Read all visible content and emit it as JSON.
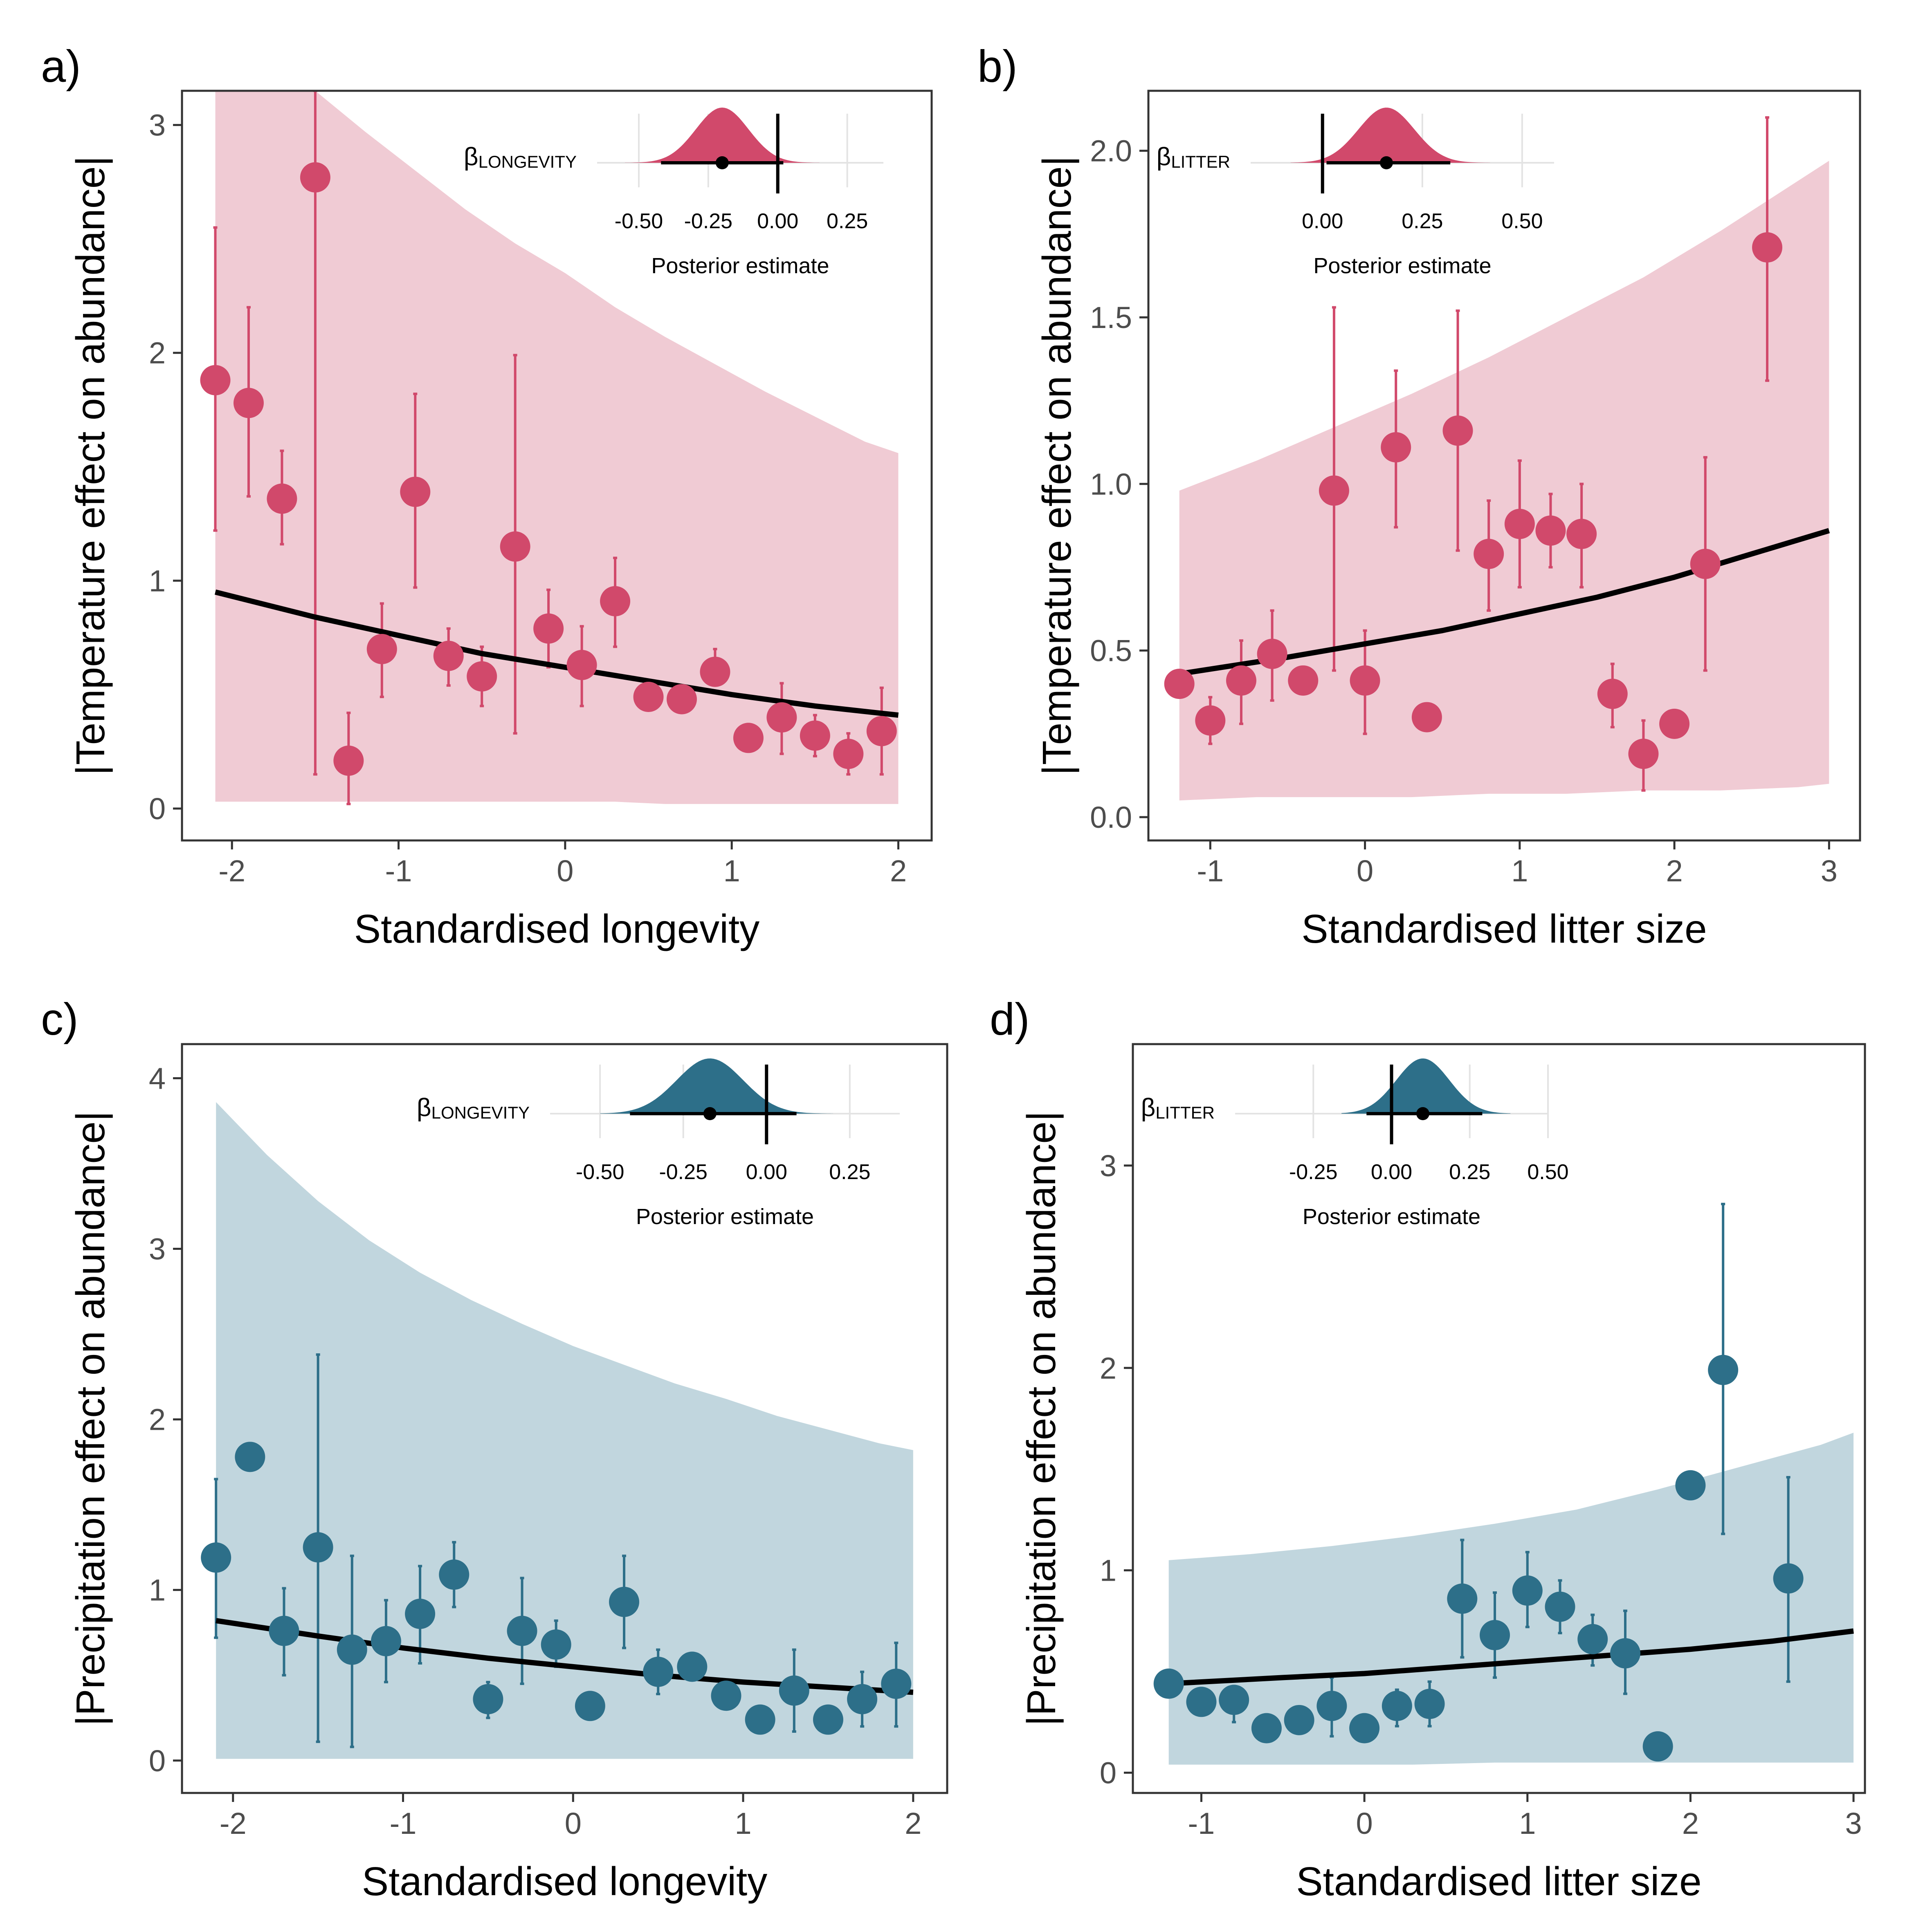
{
  "colors": {
    "temperature": "#d1496b",
    "temperature_band": "#f0cbd4",
    "precipitation": "#2d6f89",
    "precipitation_band": "#c1d6de",
    "line": "#000000",
    "frame": "#333333",
    "inset_grid": "#e3e3e3"
  },
  "chart_data": [
    {
      "type": "scatter",
      "panel_label": "a)",
      "theme": "temperature",
      "xlabel": "Standardised longevity",
      "ylabel": "|Temperature effect on abundance|",
      "xlim": [
        -2.3,
        2.2
      ],
      "ylim": [
        -0.14,
        3.15
      ],
      "xticks": [
        -2,
        -1,
        0,
        1,
        2
      ],
      "xtick_labels": [
        "-2",
        "-1",
        "0",
        "1",
        "2"
      ],
      "yticks": [
        0,
        1,
        2,
        3
      ],
      "ytick_labels": [
        "0",
        "1",
        "2",
        "3"
      ],
      "points": [
        {
          "x": -2.1,
          "y": 1.88,
          "lo": 1.22,
          "hi": 2.55
        },
        {
          "x": -1.9,
          "y": 1.78,
          "lo": 1.37,
          "hi": 2.2
        },
        {
          "x": -1.7,
          "y": 1.36,
          "lo": 1.16,
          "hi": 1.57
        },
        {
          "x": -1.5,
          "y": 2.77,
          "lo": 0.15,
          "hi": 3.15
        },
        {
          "x": -1.3,
          "y": 0.21,
          "lo": 0.02,
          "hi": 0.42
        },
        {
          "x": -1.1,
          "y": 0.7,
          "lo": 0.49,
          "hi": 0.9
        },
        {
          "x": -0.9,
          "y": 1.39,
          "lo": 0.97,
          "hi": 1.82
        },
        {
          "x": -0.7,
          "y": 0.67,
          "lo": 0.54,
          "hi": 0.79
        },
        {
          "x": -0.5,
          "y": 0.58,
          "lo": 0.45,
          "hi": 0.71
        },
        {
          "x": -0.3,
          "y": 1.15,
          "lo": 0.33,
          "hi": 1.99
        },
        {
          "x": -0.1,
          "y": 0.79,
          "lo": 0.62,
          "hi": 0.96
        },
        {
          "x": 0.1,
          "y": 0.63,
          "lo": 0.45,
          "hi": 0.8
        },
        {
          "x": 0.3,
          "y": 0.91,
          "lo": 0.71,
          "hi": 1.1
        },
        {
          "x": 0.5,
          "y": 0.49,
          "lo": 0.49,
          "hi": 0.49
        },
        {
          "x": 0.7,
          "y": 0.48,
          "lo": 0.48,
          "hi": 0.48
        },
        {
          "x": 0.9,
          "y": 0.6,
          "lo": 0.55,
          "hi": 0.7
        },
        {
          "x": 1.1,
          "y": 0.31,
          "lo": 0.31,
          "hi": 0.31
        },
        {
          "x": 1.3,
          "y": 0.4,
          "lo": 0.24,
          "hi": 0.55
        },
        {
          "x": 1.5,
          "y": 0.32,
          "lo": 0.23,
          "hi": 0.41
        },
        {
          "x": 1.7,
          "y": 0.24,
          "lo": 0.15,
          "hi": 0.33
        },
        {
          "x": 1.9,
          "y": 0.34,
          "lo": 0.15,
          "hi": 0.53
        }
      ],
      "fit_line": {
        "x": [
          -2.1,
          -1.5,
          -1.0,
          -0.5,
          0.0,
          0.5,
          1.0,
          1.5,
          2.0
        ],
        "y": [
          0.95,
          0.84,
          0.76,
          0.68,
          0.62,
          0.56,
          0.5,
          0.45,
          0.41
        ]
      },
      "band": {
        "x": [
          -2.1,
          -1.8,
          -1.5,
          -1.2,
          -0.9,
          -0.6,
          -0.3,
          0.0,
          0.3,
          0.6,
          0.9,
          1.2,
          1.5,
          1.8,
          2.0
        ],
        "lo": [
          0.03,
          0.03,
          0.03,
          0.03,
          0.03,
          0.03,
          0.03,
          0.03,
          0.03,
          0.02,
          0.02,
          0.02,
          0.02,
          0.02,
          0.02
        ],
        "hi": [
          3.3,
          3.3,
          3.15,
          2.97,
          2.8,
          2.63,
          2.48,
          2.35,
          2.2,
          2.07,
          1.95,
          1.83,
          1.72,
          1.61,
          1.56
        ]
      },
      "inset": {
        "beta_symbol": "β",
        "beta_sub": "LONGEVITY",
        "title": "Posterior estimate",
        "xlim": [
          -0.65,
          0.38
        ],
        "ticks": [
          -0.5,
          -0.25,
          0.0,
          0.25
        ],
        "tick_labels": [
          "-0.50",
          "-0.25",
          "0.00",
          "0.25"
        ],
        "mean": -0.2,
        "sd": 0.095,
        "ci": [
          -0.42,
          0.02
        ],
        "point": -0.2,
        "zero_line": 0.0,
        "density_range": [
          -0.55,
          0.15
        ]
      }
    },
    {
      "type": "scatter",
      "panel_label": "b)",
      "theme": "temperature",
      "xlabel": "Standardised litter size",
      "ylabel": "|Temperature effect on abundance|",
      "xlim": [
        -1.4,
        3.2
      ],
      "ylim": [
        -0.07,
        2.18
      ],
      "xticks": [
        -1,
        0,
        1,
        2,
        3
      ],
      "xtick_labels": [
        "-1",
        "0",
        "1",
        "2",
        "3"
      ],
      "yticks": [
        0,
        0.5,
        1.0,
        1.5,
        2.0
      ],
      "ytick_labels": [
        "0.0",
        "0.5",
        "1.0",
        "1.5",
        "2.0"
      ],
      "points": [
        {
          "x": -1.2,
          "y": 0.4,
          "lo": 0.4,
          "hi": 0.4
        },
        {
          "x": -1.0,
          "y": 0.29,
          "lo": 0.22,
          "hi": 0.36
        },
        {
          "x": -0.8,
          "y": 0.41,
          "lo": 0.28,
          "hi": 0.53
        },
        {
          "x": -0.6,
          "y": 0.49,
          "lo": 0.35,
          "hi": 0.62
        },
        {
          "x": -0.4,
          "y": 0.41,
          "lo": 0.41,
          "hi": 0.41
        },
        {
          "x": -0.2,
          "y": 0.98,
          "lo": 0.44,
          "hi": 1.53
        },
        {
          "x": 0.0,
          "y": 0.41,
          "lo": 0.25,
          "hi": 0.56
        },
        {
          "x": 0.2,
          "y": 1.11,
          "lo": 0.87,
          "hi": 1.34
        },
        {
          "x": 0.4,
          "y": 0.3,
          "lo": 0.3,
          "hi": 0.3
        },
        {
          "x": 0.6,
          "y": 1.16,
          "lo": 0.8,
          "hi": 1.52
        },
        {
          "x": 0.8,
          "y": 0.79,
          "lo": 0.62,
          "hi": 0.95
        },
        {
          "x": 1.0,
          "y": 0.88,
          "lo": 0.69,
          "hi": 1.07
        },
        {
          "x": 1.2,
          "y": 0.86,
          "lo": 0.75,
          "hi": 0.97
        },
        {
          "x": 1.4,
          "y": 0.85,
          "lo": 0.69,
          "hi": 1.0
        },
        {
          "x": 1.6,
          "y": 0.37,
          "lo": 0.27,
          "hi": 0.46
        },
        {
          "x": 1.8,
          "y": 0.19,
          "lo": 0.08,
          "hi": 0.29
        },
        {
          "x": 2.0,
          "y": 0.28,
          "lo": 0.28,
          "hi": 0.28
        },
        {
          "x": 2.2,
          "y": 0.76,
          "lo": 0.44,
          "hi": 1.08
        },
        {
          "x": 2.6,
          "y": 1.71,
          "lo": 1.31,
          "hi": 2.1
        }
      ],
      "fit_line": {
        "x": [
          -1.2,
          -0.5,
          0.0,
          0.5,
          1.0,
          1.5,
          2.0,
          2.5,
          3.0
        ],
        "y": [
          0.43,
          0.48,
          0.52,
          0.56,
          0.61,
          0.66,
          0.72,
          0.79,
          0.86
        ]
      },
      "band": {
        "x": [
          -1.2,
          -0.7,
          -0.2,
          0.3,
          0.8,
          1.3,
          1.8,
          2.3,
          2.8,
          3.0
        ],
        "lo": [
          0.05,
          0.06,
          0.06,
          0.06,
          0.07,
          0.07,
          0.08,
          0.08,
          0.09,
          0.1
        ],
        "hi": [
          0.98,
          1.07,
          1.17,
          1.27,
          1.38,
          1.5,
          1.62,
          1.76,
          1.91,
          1.97
        ]
      },
      "inset": {
        "beta_symbol": "β",
        "beta_sub": "LITTER",
        "title": "Posterior estimate",
        "xlim": [
          -0.18,
          0.58
        ],
        "ticks": [
          0.0,
          0.25,
          0.5
        ],
        "tick_labels": [
          "0.00",
          "0.25",
          "0.50"
        ],
        "mean": 0.16,
        "sd": 0.07,
        "ci": [
          0.01,
          0.32
        ],
        "point": 0.16,
        "zero_line": 0.0,
        "density_range": [
          -0.08,
          0.42
        ]
      }
    },
    {
      "type": "scatter",
      "panel_label": "c)",
      "theme": "precipitation",
      "xlabel": "Standardised longevity",
      "ylabel": "|Precipitation effect on abundance|",
      "xlim": [
        -2.3,
        2.2
      ],
      "ylim": [
        -0.19,
        4.2
      ],
      "xticks": [
        -2,
        -1,
        0,
        1,
        2
      ],
      "xtick_labels": [
        "-2",
        "-1",
        "0",
        "1",
        "2"
      ],
      "yticks": [
        0,
        1,
        2,
        3,
        4
      ],
      "ytick_labels": [
        "0",
        "1",
        "2",
        "3",
        "4"
      ],
      "points": [
        {
          "x": -2.1,
          "y": 1.19,
          "lo": 0.72,
          "hi": 1.65
        },
        {
          "x": -1.9,
          "y": 1.78,
          "lo": 1.78,
          "hi": 1.78
        },
        {
          "x": -1.7,
          "y": 0.76,
          "lo": 0.5,
          "hi": 1.01
        },
        {
          "x": -1.5,
          "y": 1.25,
          "lo": 0.11,
          "hi": 2.38
        },
        {
          "x": -1.3,
          "y": 0.65,
          "lo": 0.08,
          "hi": 1.2
        },
        {
          "x": -1.1,
          "y": 0.7,
          "lo": 0.46,
          "hi": 0.94
        },
        {
          "x": -0.9,
          "y": 0.86,
          "lo": 0.57,
          "hi": 1.14
        },
        {
          "x": -0.7,
          "y": 1.09,
          "lo": 0.9,
          "hi": 1.28
        },
        {
          "x": -0.5,
          "y": 0.36,
          "lo": 0.25,
          "hi": 0.46
        },
        {
          "x": -0.3,
          "y": 0.76,
          "lo": 0.45,
          "hi": 1.07
        },
        {
          "x": -0.1,
          "y": 0.68,
          "lo": 0.55,
          "hi": 0.82
        },
        {
          "x": 0.1,
          "y": 0.32,
          "lo": 0.32,
          "hi": 0.32
        },
        {
          "x": 0.3,
          "y": 0.93,
          "lo": 0.66,
          "hi": 1.2
        },
        {
          "x": 0.5,
          "y": 0.52,
          "lo": 0.39,
          "hi": 0.65
        },
        {
          "x": 0.7,
          "y": 0.55,
          "lo": 0.55,
          "hi": 0.55
        },
        {
          "x": 0.9,
          "y": 0.38,
          "lo": 0.38,
          "hi": 0.38
        },
        {
          "x": 1.1,
          "y": 0.24,
          "lo": 0.24,
          "hi": 0.24
        },
        {
          "x": 1.3,
          "y": 0.41,
          "lo": 0.17,
          "hi": 0.65
        },
        {
          "x": 1.5,
          "y": 0.24,
          "lo": 0.24,
          "hi": 0.24
        },
        {
          "x": 1.7,
          "y": 0.36,
          "lo": 0.2,
          "hi": 0.52
        },
        {
          "x": 1.9,
          "y": 0.45,
          "lo": 0.2,
          "hi": 0.69
        }
      ],
      "fit_line": {
        "x": [
          -2.1,
          -1.5,
          -1.0,
          -0.5,
          0.0,
          0.5,
          1.0,
          1.5,
          2.0
        ],
        "y": [
          0.82,
          0.73,
          0.66,
          0.6,
          0.55,
          0.5,
          0.46,
          0.43,
          0.4
        ]
      },
      "band": {
        "x": [
          -2.1,
          -1.8,
          -1.5,
          -1.2,
          -0.9,
          -0.6,
          -0.3,
          0.0,
          0.3,
          0.6,
          0.9,
          1.2,
          1.5,
          1.8,
          2.0
        ],
        "lo": [
          0.01,
          0.01,
          0.01,
          0.01,
          0.01,
          0.01,
          0.01,
          0.01,
          0.01,
          0.01,
          0.01,
          0.01,
          0.01,
          0.01,
          0.01
        ],
        "hi": [
          3.86,
          3.55,
          3.28,
          3.05,
          2.86,
          2.7,
          2.56,
          2.43,
          2.32,
          2.21,
          2.12,
          2.02,
          1.94,
          1.86,
          1.82
        ]
      },
      "inset": {
        "beta_symbol": "β",
        "beta_sub": "LONGEVITY",
        "title": "Posterior estimate",
        "xlim": [
          -0.65,
          0.4
        ],
        "ticks": [
          -0.5,
          -0.25,
          0.0,
          0.25
        ],
        "tick_labels": [
          "-0.50",
          "-0.25",
          "0.00",
          "0.25"
        ],
        "mean": -0.17,
        "sd": 0.1,
        "ci": [
          -0.41,
          0.09
        ],
        "point": -0.17,
        "zero_line": 0.0,
        "density_range": [
          -0.5,
          0.2
        ]
      }
    },
    {
      "type": "scatter",
      "panel_label": "d)",
      "theme": "precipitation",
      "xlabel": "Standardised litter size",
      "ylabel": "|Precipitation effect on abundance|",
      "xlim": [
        -1.42,
        3.07
      ],
      "ylim": [
        -0.1,
        3.6
      ],
      "xticks": [
        -1,
        0,
        1,
        2,
        3
      ],
      "xtick_labels": [
        "-1",
        "0",
        "1",
        "2",
        "3"
      ],
      "yticks": [
        0,
        1,
        2,
        3
      ],
      "ytick_labels": [
        "0",
        "1",
        "2",
        "3"
      ],
      "points": [
        {
          "x": -1.2,
          "y": 0.44,
          "lo": 0.44,
          "hi": 0.44
        },
        {
          "x": -1.0,
          "y": 0.35,
          "lo": 0.35,
          "hi": 0.35
        },
        {
          "x": -0.8,
          "y": 0.36,
          "lo": 0.25,
          "hi": 0.41
        },
        {
          "x": -0.6,
          "y": 0.22,
          "lo": 0.22,
          "hi": 0.22
        },
        {
          "x": -0.4,
          "y": 0.26,
          "lo": 0.26,
          "hi": 0.26
        },
        {
          "x": -0.2,
          "y": 0.33,
          "lo": 0.18,
          "hi": 0.47
        },
        {
          "x": 0.0,
          "y": 0.22,
          "lo": 0.22,
          "hi": 0.22
        },
        {
          "x": 0.2,
          "y": 0.33,
          "lo": 0.23,
          "hi": 0.41
        },
        {
          "x": 0.4,
          "y": 0.34,
          "lo": 0.23,
          "hi": 0.45
        },
        {
          "x": 0.6,
          "y": 0.86,
          "lo": 0.57,
          "hi": 1.15
        },
        {
          "x": 0.8,
          "y": 0.68,
          "lo": 0.47,
          "hi": 0.89
        },
        {
          "x": 1.0,
          "y": 0.9,
          "lo": 0.72,
          "hi": 1.09
        },
        {
          "x": 1.2,
          "y": 0.82,
          "lo": 0.69,
          "hi": 0.95
        },
        {
          "x": 1.4,
          "y": 0.66,
          "lo": 0.53,
          "hi": 0.78
        },
        {
          "x": 1.6,
          "y": 0.59,
          "lo": 0.39,
          "hi": 0.8
        },
        {
          "x": 1.8,
          "y": 0.13,
          "lo": 0.13,
          "hi": 0.13
        },
        {
          "x": 2.0,
          "y": 1.42,
          "lo": 1.42,
          "hi": 1.42
        },
        {
          "x": 2.2,
          "y": 1.99,
          "lo": 1.18,
          "hi": 2.81
        },
        {
          "x": 2.6,
          "y": 0.96,
          "lo": 0.45,
          "hi": 1.46
        }
      ],
      "fit_line": {
        "x": [
          -1.2,
          -0.5,
          0.0,
          0.5,
          1.0,
          1.5,
          2.0,
          2.5,
          3.0
        ],
        "y": [
          0.44,
          0.47,
          0.49,
          0.52,
          0.55,
          0.58,
          0.61,
          0.65,
          0.7
        ]
      },
      "band": {
        "x": [
          -1.2,
          -0.7,
          -0.2,
          0.3,
          0.8,
          1.3,
          1.8,
          2.3,
          2.8,
          3.0
        ],
        "lo": [
          0.04,
          0.04,
          0.04,
          0.04,
          0.05,
          0.05,
          0.05,
          0.05,
          0.05,
          0.05
        ],
        "hi": [
          1.05,
          1.08,
          1.12,
          1.17,
          1.23,
          1.3,
          1.4,
          1.51,
          1.62,
          1.68
        ]
      },
      "inset": {
        "beta_symbol": "β",
        "beta_sub": "LITTER",
        "title": "Posterior estimate",
        "xlim": [
          -0.5,
          0.5
        ],
        "ticks": [
          -0.25,
          0.0,
          0.25,
          0.5
        ],
        "tick_labels": [
          "-0.25",
          "0.00",
          "0.25",
          "0.50"
        ],
        "mean": 0.1,
        "sd": 0.085,
        "ci": [
          -0.08,
          0.29
        ],
        "point": 0.1,
        "zero_line": 0.0,
        "density_range": [
          -0.16,
          0.38
        ]
      }
    }
  ]
}
